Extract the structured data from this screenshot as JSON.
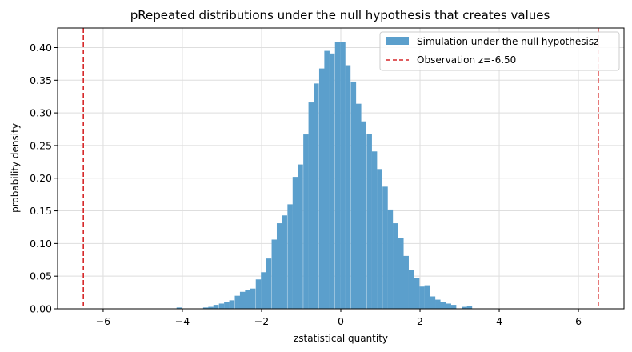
{
  "chart_data": {
    "type": "bar",
    "title": "pRepeated distributions under the null hypothesis that creates values",
    "xlabel": "zstatistical quantity",
    "ylabel": "probability density",
    "xlim": [
      -7.15,
      7.15
    ],
    "ylim": [
      0,
      0.43
    ],
    "grid": true,
    "legend_position": "top-right",
    "xticks": [
      -6,
      -4,
      -2,
      0,
      2,
      4,
      6
    ],
    "yticks": [
      0.0,
      0.05,
      0.1,
      0.15,
      0.2,
      0.25,
      0.3,
      0.35,
      0.4
    ],
    "xtick_labels": [
      "−6",
      "−4",
      "−2",
      "0",
      "2",
      "4",
      "6"
    ],
    "ytick_labels": [
      "0.00",
      "0.05",
      "0.10",
      "0.15",
      "0.20",
      "0.25",
      "0.30",
      "0.35",
      "0.40"
    ],
    "colors": {
      "histogram": "#5b9fcc",
      "observation": "#d62728",
      "grid": "#dedede"
    },
    "series": [
      {
        "name": "Simulation under the null hypothesisz",
        "type": "histogram",
        "bin_width": 0.1325,
        "bins": [
          [
            -4.08,
            0.002
          ],
          [
            -3.41,
            0.002
          ],
          [
            -3.28,
            0.003
          ],
          [
            -3.15,
            0.006
          ],
          [
            -3.01,
            0.008
          ],
          [
            -2.88,
            0.01
          ],
          [
            -2.75,
            0.013
          ],
          [
            -2.61,
            0.02
          ],
          [
            -2.48,
            0.026
          ],
          [
            -2.35,
            0.029
          ],
          [
            -2.22,
            0.031
          ],
          [
            -2.08,
            0.045
          ],
          [
            -1.95,
            0.056
          ],
          [
            -1.82,
            0.077
          ],
          [
            -1.68,
            0.106
          ],
          [
            -1.55,
            0.131
          ],
          [
            -1.42,
            0.143
          ],
          [
            -1.28,
            0.16
          ],
          [
            -1.15,
            0.202
          ],
          [
            -1.02,
            0.221
          ],
          [
            -0.88,
            0.267
          ],
          [
            -0.75,
            0.316
          ],
          [
            -0.62,
            0.345
          ],
          [
            -0.48,
            0.368
          ],
          [
            -0.35,
            0.395
          ],
          [
            -0.22,
            0.391
          ],
          [
            -0.08,
            0.408
          ],
          [
            0.05,
            0.408
          ],
          [
            0.18,
            0.373
          ],
          [
            0.32,
            0.348
          ],
          [
            0.45,
            0.314
          ],
          [
            0.58,
            0.287
          ],
          [
            0.72,
            0.268
          ],
          [
            0.85,
            0.241
          ],
          [
            0.98,
            0.214
          ],
          [
            1.12,
            0.187
          ],
          [
            1.25,
            0.152
          ],
          [
            1.38,
            0.131
          ],
          [
            1.52,
            0.108
          ],
          [
            1.65,
            0.081
          ],
          [
            1.78,
            0.06
          ],
          [
            1.92,
            0.047
          ],
          [
            2.05,
            0.034
          ],
          [
            2.18,
            0.036
          ],
          [
            2.32,
            0.019
          ],
          [
            2.45,
            0.014
          ],
          [
            2.58,
            0.01
          ],
          [
            2.72,
            0.008
          ],
          [
            2.85,
            0.006
          ],
          [
            3.12,
            0.003
          ],
          [
            3.25,
            0.004
          ]
        ]
      },
      {
        "name": "Observation z=-6.50",
        "type": "vline",
        "x": [
          -6.5,
          6.5
        ]
      }
    ]
  }
}
